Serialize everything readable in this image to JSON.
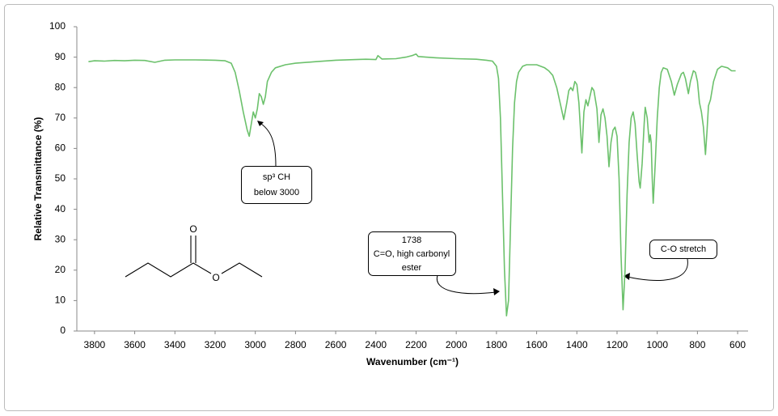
{
  "chart_data": {
    "type": "line",
    "x_label": "Wavenumber (cm⁻¹)",
    "y_label": "Relative Transmittance (%)",
    "color": "#6cc16c",
    "xlim": [
      3888,
      548
    ],
    "ylim": [
      0,
      100
    ],
    "xticks": [
      3800,
      3600,
      3400,
      3200,
      3000,
      2800,
      2600,
      2400,
      2200,
      2000,
      1800,
      1600,
      1400,
      1200,
      1000,
      800,
      600
    ],
    "yticks": [
      0,
      10,
      20,
      30,
      40,
      50,
      60,
      70,
      80,
      90,
      100
    ],
    "x": [
      3830,
      3800,
      3750,
      3700,
      3650,
      3600,
      3550,
      3500,
      3450,
      3400,
      3300,
      3200,
      3150,
      3120,
      3100,
      3080,
      3060,
      3040,
      3030,
      3020,
      3010,
      3000,
      2990,
      2980,
      2970,
      2960,
      2950,
      2940,
      2920,
      2900,
      2850,
      2800,
      2700,
      2600,
      2500,
      2450,
      2400,
      2390,
      2370,
      2300,
      2250,
      2220,
      2200,
      2190,
      2150,
      2100,
      2000,
      1900,
      1850,
      1820,
      1800,
      1790,
      1780,
      1770,
      1760,
      1750,
      1740,
      1730,
      1720,
      1710,
      1700,
      1690,
      1670,
      1650,
      1600,
      1560,
      1540,
      1520,
      1500,
      1480,
      1465,
      1450,
      1440,
      1430,
      1420,
      1410,
      1400,
      1390,
      1375,
      1365,
      1355,
      1345,
      1335,
      1325,
      1315,
      1300,
      1290,
      1280,
      1270,
      1260,
      1250,
      1240,
      1230,
      1220,
      1210,
      1200,
      1190,
      1180,
      1170,
      1160,
      1150,
      1140,
      1130,
      1120,
      1110,
      1100,
      1090,
      1085,
      1075,
      1065,
      1060,
      1050,
      1040,
      1035,
      1030,
      1025,
      1020,
      1010,
      1000,
      990,
      980,
      970,
      950,
      930,
      915,
      900,
      880,
      870,
      860,
      845,
      835,
      820,
      810,
      800,
      790,
      780,
      770,
      760,
      752,
      745,
      735,
      720,
      700,
      680,
      650,
      630,
      610
    ],
    "values": [
      88.5,
      88.8,
      88.7,
      88.9,
      88.8,
      89,
      88.9,
      88.3,
      89,
      89.1,
      89.1,
      89,
      88.8,
      88,
      85,
      79,
      72,
      66,
      64,
      68,
      72,
      70,
      73,
      78,
      77,
      74.5,
      77,
      82,
      85,
      86.5,
      87.5,
      88,
      88.5,
      89,
      89.2,
      89.3,
      89.2,
      90.5,
      89.4,
      89.5,
      90,
      90.5,
      91,
      90.2,
      90,
      89.8,
      89.5,
      89.3,
      89,
      88.7,
      87,
      83,
      70,
      45,
      20,
      5,
      10,
      35,
      60,
      75,
      82,
      85,
      87,
      87.5,
      87.5,
      86.5,
      85.5,
      84,
      80,
      74,
      69.5,
      75,
      79,
      80,
      79,
      82,
      81,
      75,
      58.5,
      72,
      76,
      74,
      77,
      80,
      79,
      73,
      62,
      71,
      73,
      70,
      64,
      54,
      62,
      66,
      67,
      64,
      50,
      25,
      7,
      20,
      45,
      62,
      70,
      72,
      68,
      58,
      49,
      47,
      55,
      68,
      73.5,
      70,
      62,
      64.5,
      62,
      50,
      42,
      55,
      70,
      80,
      85,
      86.5,
      86,
      82,
      77.5,
      81,
      84.5,
      85,
      83,
      78,
      82,
      85.5,
      85,
      82,
      75,
      72,
      67,
      58,
      66,
      74,
      76,
      82,
      86,
      87,
      86.5,
      85.5,
      85.5
    ],
    "annotations": [
      {
        "lines": [
          "sp³ CH",
          "below 3000"
        ]
      },
      {
        "lines": [
          "1738",
          "C=O, high carbonyl",
          "ester"
        ]
      },
      {
        "lines": [
          "C-O stretch"
        ]
      }
    ],
    "structure": {
      "atoms": [
        "O",
        "O"
      ]
    }
  }
}
